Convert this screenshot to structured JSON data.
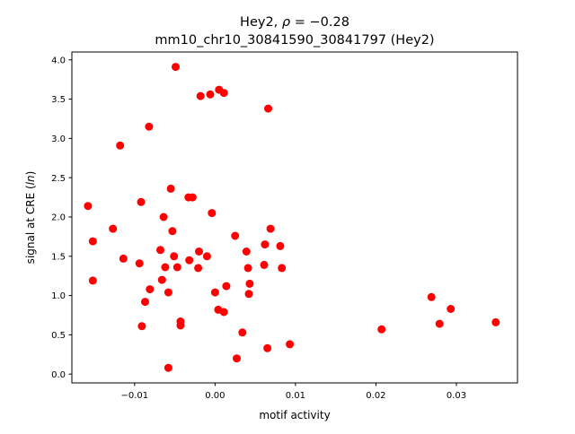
{
  "chart_data": {
    "type": "scatter",
    "title_line1_prefix": "Hey2, ",
    "title_line1_rho": "ρ",
    "title_line1_suffix": " = −0.28",
    "title_line2": "mm10_chr10_30841590_30841797 (Hey2)",
    "xlabel": "motif activity",
    "ylabel_prefix": "signal at CRE (",
    "ylabel_italic": "ln",
    "ylabel_suffix": ")",
    "xlim": [
      -0.0178,
      0.0376
    ],
    "ylim": [
      -0.112,
      4.1
    ],
    "x_ticks": [
      {
        "value": -0.01,
        "label": "−0.01"
      },
      {
        "value": 0.0,
        "label": "0.00"
      },
      {
        "value": 0.01,
        "label": "0.01"
      },
      {
        "value": 0.02,
        "label": "0.02"
      },
      {
        "value": 0.03,
        "label": "0.03"
      }
    ],
    "y_ticks": [
      {
        "value": 0.0,
        "label": "0.0"
      },
      {
        "value": 0.5,
        "label": "0.5"
      },
      {
        "value": 1.0,
        "label": "1.0"
      },
      {
        "value": 1.5,
        "label": "1.5"
      },
      {
        "value": 2.0,
        "label": "2.0"
      },
      {
        "value": 2.5,
        "label": "2.5"
      },
      {
        "value": 3.0,
        "label": "3.0"
      },
      {
        "value": 3.5,
        "label": "3.5"
      },
      {
        "value": 4.0,
        "label": "4.0"
      }
    ],
    "marker_color": "#ff0000",
    "points": [
      {
        "x": -0.0049,
        "y": 3.91
      },
      {
        "x": 0.0005,
        "y": 3.62
      },
      {
        "x": -0.0006,
        "y": 3.56
      },
      {
        "x": 0.0011,
        "y": 3.58
      },
      {
        "x": -0.0018,
        "y": 3.54
      },
      {
        "x": 0.0066,
        "y": 3.38
      },
      {
        "x": -0.0082,
        "y": 3.15
      },
      {
        "x": -0.0118,
        "y": 2.91
      },
      {
        "x": -0.0055,
        "y": 2.36
      },
      {
        "x": -0.0033,
        "y": 2.25
      },
      {
        "x": -0.0028,
        "y": 2.25
      },
      {
        "x": -0.0092,
        "y": 2.19
      },
      {
        "x": -0.0158,
        "y": 2.14
      },
      {
        "x": -0.0004,
        "y": 2.05
      },
      {
        "x": -0.0064,
        "y": 2.0
      },
      {
        "x": -0.0127,
        "y": 1.85
      },
      {
        "x": 0.0069,
        "y": 1.85
      },
      {
        "x": -0.0053,
        "y": 1.82
      },
      {
        "x": 0.0025,
        "y": 1.76
      },
      {
        "x": -0.0152,
        "y": 1.69
      },
      {
        "x": 0.0062,
        "y": 1.65
      },
      {
        "x": 0.0081,
        "y": 1.63
      },
      {
        "x": -0.0068,
        "y": 1.58
      },
      {
        "x": -0.002,
        "y": 1.56
      },
      {
        "x": 0.0039,
        "y": 1.56
      },
      {
        "x": -0.001,
        "y": 1.5
      },
      {
        "x": -0.0051,
        "y": 1.5
      },
      {
        "x": -0.0114,
        "y": 1.47
      },
      {
        "x": -0.0032,
        "y": 1.45
      },
      {
        "x": -0.0094,
        "y": 1.41
      },
      {
        "x": 0.0061,
        "y": 1.39
      },
      {
        "x": -0.0062,
        "y": 1.36
      },
      {
        "x": -0.0047,
        "y": 1.36
      },
      {
        "x": -0.0021,
        "y": 1.35
      },
      {
        "x": 0.0041,
        "y": 1.35
      },
      {
        "x": 0.0083,
        "y": 1.35
      },
      {
        "x": -0.0152,
        "y": 1.19
      },
      {
        "x": -0.0066,
        "y": 1.2
      },
      {
        "x": 0.0043,
        "y": 1.15
      },
      {
        "x": 0.0014,
        "y": 1.12
      },
      {
        "x": -0.0081,
        "y": 1.08
      },
      {
        "x": -0.0058,
        "y": 1.04
      },
      {
        "x": 0.0,
        "y": 1.04
      },
      {
        "x": 0.0042,
        "y": 1.02
      },
      {
        "x": 0.0269,
        "y": 0.98
      },
      {
        "x": -0.0087,
        "y": 0.92
      },
      {
        "x": 0.0293,
        "y": 0.83
      },
      {
        "x": 0.0004,
        "y": 0.82
      },
      {
        "x": 0.0011,
        "y": 0.79
      },
      {
        "x": -0.0043,
        "y": 0.67
      },
      {
        "x": 0.0349,
        "y": 0.66
      },
      {
        "x": 0.0279,
        "y": 0.64
      },
      {
        "x": -0.0043,
        "y": 0.62
      },
      {
        "x": -0.0091,
        "y": 0.61
      },
      {
        "x": 0.0207,
        "y": 0.57
      },
      {
        "x": 0.0034,
        "y": 0.53
      },
      {
        "x": 0.0093,
        "y": 0.38
      },
      {
        "x": 0.0065,
        "y": 0.33
      },
      {
        "x": 0.0027,
        "y": 0.2
      },
      {
        "x": -0.0058,
        "y": 0.08
      }
    ]
  }
}
